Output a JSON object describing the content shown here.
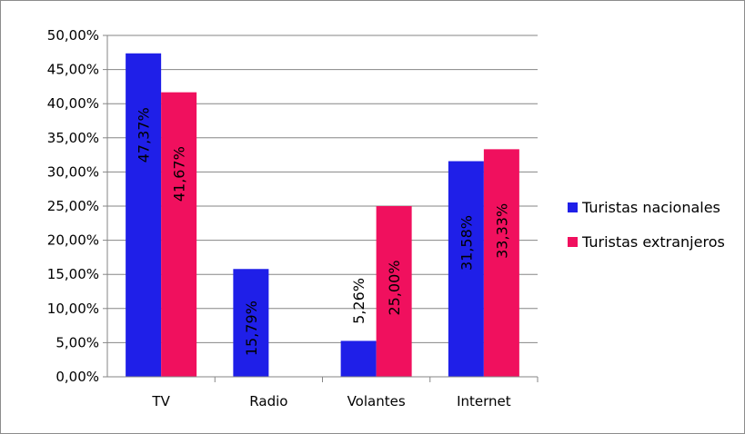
{
  "chart_data": {
    "type": "bar",
    "categories": [
      "TV",
      "Radio",
      "Volantes",
      "Internet"
    ],
    "series": [
      {
        "name": "Turistas nacionales",
        "color": "#1f1fe8",
        "values": [
          47.37,
          15.79,
          5.26,
          31.58
        ],
        "labels": [
          "47,37%",
          "15,79%",
          "5,26%",
          "31,58%"
        ]
      },
      {
        "name": "Turistas extranjeros",
        "color": "#f0105e",
        "values": [
          41.67,
          0,
          25.0,
          33.33
        ],
        "labels": [
          "41,67%",
          "",
          "25,00%",
          "33,33%"
        ]
      }
    ],
    "yticks": [
      "0,00%",
      "5,00%",
      "10,00%",
      "15,00%",
      "20,00%",
      "25,00%",
      "30,00%",
      "35,00%",
      "40,00%",
      "45,00%",
      "50,00%"
    ],
    "ylim": [
      0,
      50
    ],
    "grid": true,
    "legend_position": "right",
    "title": "",
    "xlabel": "",
    "ylabel": ""
  }
}
